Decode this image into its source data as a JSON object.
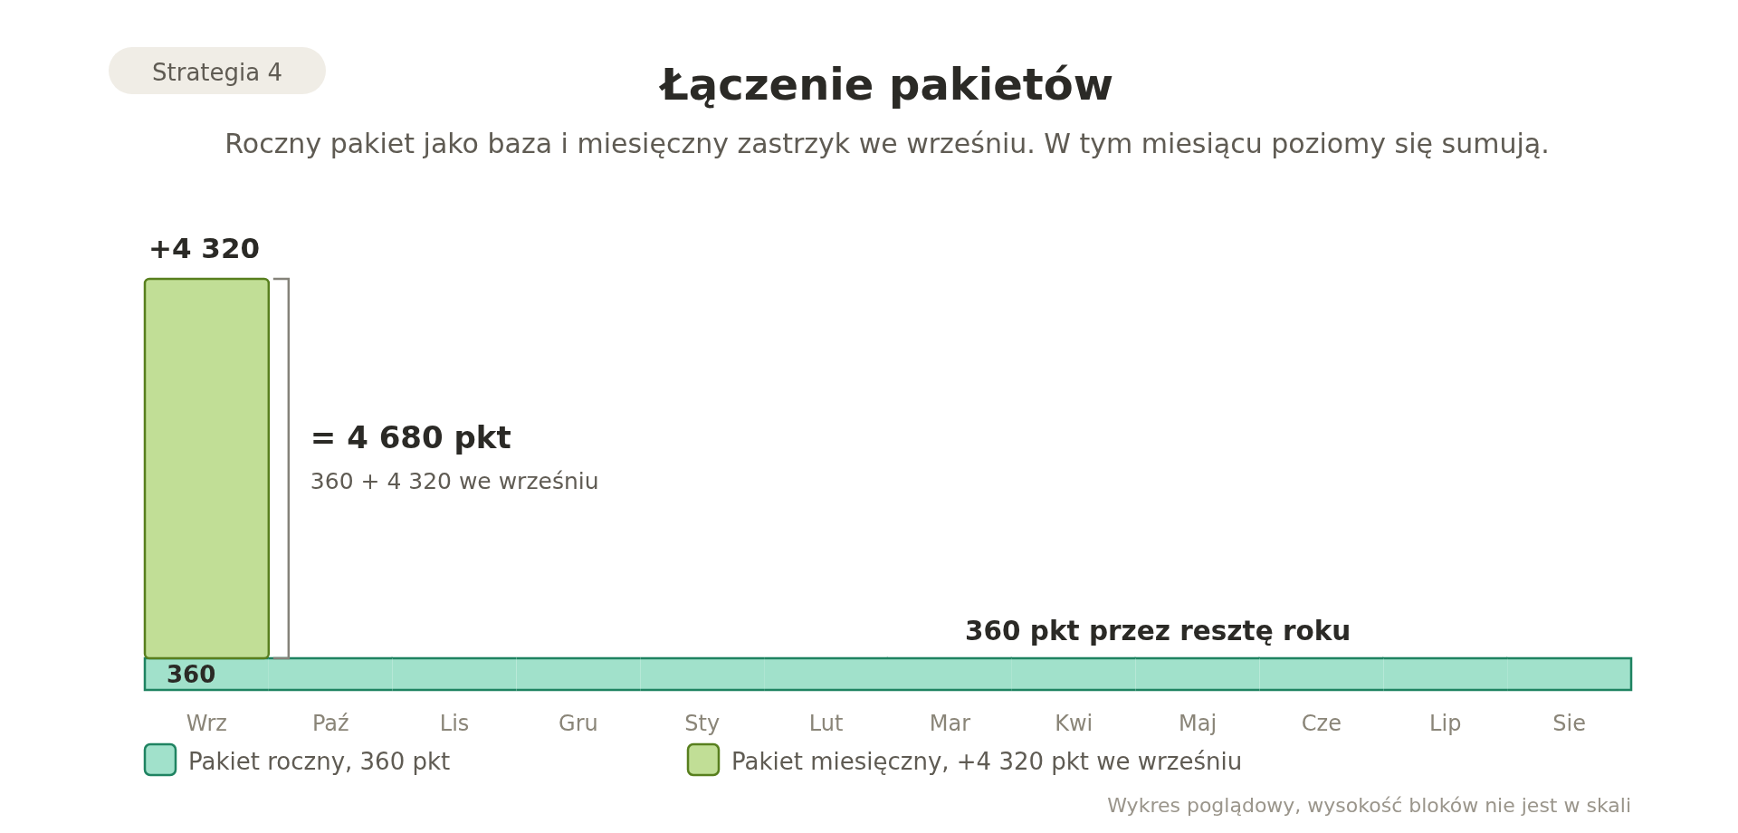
{
  "chart_data": {
    "type": "bar",
    "stacked": true,
    "title": "Łączenie pakietów",
    "subtitle": "Roczny pakiet jako baza i miesięczny zastrzyk we wrześniu. W tym miesiącu poziomy się sumują.",
    "categories": [
      "Wrz",
      "Paź",
      "Lis",
      "Gru",
      "Sty",
      "Lut",
      "Mar",
      "Kwi",
      "Maj",
      "Cze",
      "Lip",
      "Sie"
    ],
    "series": [
      {
        "name": "Pakiet roczny, 360 pkt",
        "color": "#a1e1cb",
        "values": [
          360,
          360,
          360,
          360,
          360,
          360,
          360,
          360,
          360,
          360,
          360,
          360
        ],
        "value_labels": [
          "360",
          null,
          null,
          null,
          null,
          null,
          null,
          null,
          null,
          null,
          null,
          null
        ]
      },
      {
        "name": "Pakiet miesięczny, +4 320 pkt we wrześniu",
        "color": "#c1de96",
        "values": [
          4320,
          null,
          null,
          null,
          null,
          null,
          null,
          null,
          null,
          null,
          null,
          null
        ],
        "value_labels": [
          "+4 320",
          null,
          null,
          null,
          null,
          null,
          null,
          null,
          null,
          null,
          null,
          null
        ]
      }
    ],
    "annotations": [
      "Strategia 4",
      "= 4 680 pkt",
      "360 + 4 320 we wrześniu",
      "360 pkt przez resztę roku",
      "Wykres poglądowy, wysokość bloków nie jest w skali"
    ],
    "legend": "bottom",
    "tick_labels": "x"
  }
}
